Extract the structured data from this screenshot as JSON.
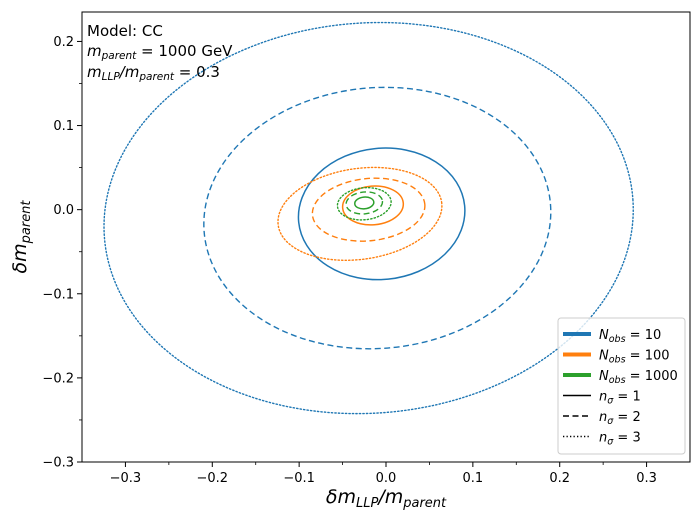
{
  "chart_data": {
    "type": "line",
    "annotations": {
      "line1": "Model: CC",
      "line2_sym": "m",
      "line2_sub": "parent",
      "line2_rest": " = 1000 GeV",
      "line3_sym1": "m",
      "line3_sub1": "LLP",
      "line3_mid": "/m",
      "line3_sub2": "parent",
      "line3_rest": " = 0.3"
    },
    "xlabel": {
      "sym": "δm",
      "sub": "LLP",
      "mid": "/m",
      "sub2": "parent"
    },
    "ylabel": {
      "sym": "δm",
      "sub": "parent"
    },
    "xlim": [
      -0.35,
      0.35
    ],
    "ylim": [
      -0.3,
      0.235
    ],
    "xticks": [
      -0.3,
      -0.2,
      -0.1,
      0.0,
      0.1,
      0.2,
      0.3
    ],
    "xtick_labels": [
      "−0.3",
      "−0.2",
      "−0.1",
      "0.0",
      "0.1",
      "0.2",
      "0.3"
    ],
    "yticks": [
      -0.3,
      -0.2,
      -0.1,
      0.0,
      0.1,
      0.2
    ],
    "ytick_labels": [
      "−0.3",
      "−0.2",
      "−0.1",
      "0.0",
      "0.1",
      "0.2"
    ],
    "grid": false,
    "legend_position": "bottom-right",
    "colors": {
      "N10": "#1f77b4",
      "N100": "#ff7f0e",
      "N1000": "#2ca02c"
    },
    "legend": [
      {
        "key": "N10",
        "sym": "N",
        "sub": "obs",
        "rest": " = 10",
        "style": "solid",
        "thick": true
      },
      {
        "key": "N100",
        "sym": "N",
        "sub": "obs",
        "rest": " = 100",
        "style": "solid",
        "thick": true
      },
      {
        "key": "N1000",
        "sym": "N",
        "sub": "obs",
        "rest": " = 1000",
        "style": "solid",
        "thick": true
      },
      {
        "key": "black",
        "sym": "n",
        "sub": "σ",
        "rest": " = 1",
        "style": "solid",
        "thick": false
      },
      {
        "key": "black",
        "sym": "n",
        "sub": "σ",
        "rest": " = 2",
        "style": "dashed",
        "thick": false
      },
      {
        "key": "black",
        "sym": "n",
        "sub": "σ",
        "rest": " = 3",
        "style": "dotted",
        "thick": false
      }
    ],
    "series": [
      {
        "name": "N_obs = 10, n_σ = 1",
        "color_key": "N10",
        "style": "solid",
        "center": [
          -0.005,
          -0.005
        ],
        "rx": 0.096,
        "ry": 0.078,
        "tilt": -0.1
      },
      {
        "name": "N_obs = 10, n_σ = 2",
        "color_key": "N10",
        "style": "dashed",
        "center": [
          -0.01,
          -0.01
        ],
        "rx": 0.2,
        "ry": 0.155,
        "tilt": -0.08
      },
      {
        "name": "N_obs = 10, n_σ = 3",
        "color_key": "N10",
        "style": "dotted",
        "center": [
          -0.02,
          -0.01
        ],
        "rx": 0.305,
        "ry": 0.232,
        "tilt": -0.07
      },
      {
        "name": "N_obs = 100, n_σ = 1",
        "color_key": "N100",
        "style": "solid",
        "center": [
          -0.015,
          0.005
        ],
        "rx": 0.035,
        "ry": 0.023,
        "tilt": -0.08
      },
      {
        "name": "N_obs = 100, n_σ = 2",
        "color_key": "N100",
        "style": "dashed",
        "center": [
          -0.02,
          0.0
        ],
        "rx": 0.065,
        "ry": 0.037,
        "tilt": -0.1
      },
      {
        "name": "N_obs = 100, n_σ = 3",
        "color_key": "N100",
        "style": "dotted",
        "center": [
          -0.03,
          -0.005
        ],
        "rx": 0.095,
        "ry": 0.054,
        "tilt": -0.14
      },
      {
        "name": "N_obs = 1000, n_σ = 1",
        "color_key": "N1000",
        "style": "solid",
        "center": [
          -0.025,
          0.008
        ],
        "rx": 0.011,
        "ry": 0.007,
        "tilt": -0.1
      },
      {
        "name": "N_obs = 1000, n_σ = 2",
        "color_key": "N1000",
        "style": "dashed",
        "center": [
          -0.025,
          0.008
        ],
        "rx": 0.021,
        "ry": 0.013,
        "tilt": -0.1
      },
      {
        "name": "N_obs = 1000, n_σ = 3",
        "color_key": "N1000",
        "style": "dotted",
        "center": [
          -0.025,
          0.007
        ],
        "rx": 0.031,
        "ry": 0.019,
        "tilt": -0.1
      }
    ]
  }
}
